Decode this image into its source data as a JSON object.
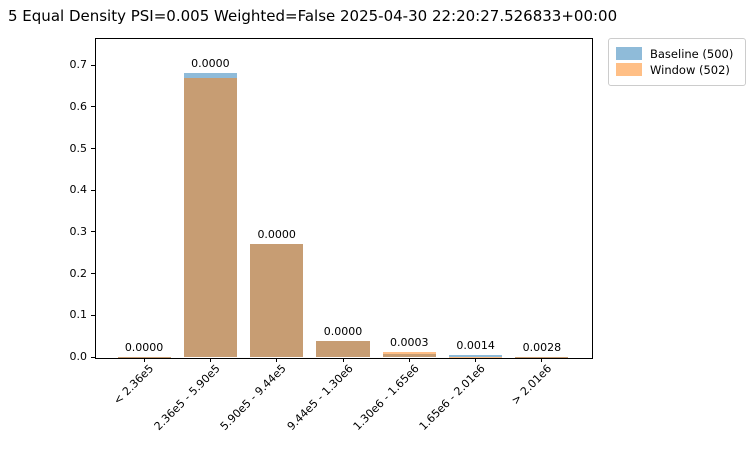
{
  "title": "5 Equal Density PSI=0.005 Weighted=False 2025-04-30 22:20:27.526833+00:00",
  "legend": {
    "entries": [
      {
        "label": "Baseline (500)",
        "color": "#1f77b4"
      },
      {
        "label": "Window (502)",
        "color": "#ff7f0e"
      }
    ],
    "alpha": 0.5,
    "position": "upper-right-outside"
  },
  "chart_data": {
    "type": "bar",
    "title": "5 Equal Density PSI=0.005 Weighted=False 2025-04-30 22:20:27.526833+00:00",
    "categories": [
      "< 2.36e5",
      "2.36e5 - 5.90e5",
      "5.90e5 - 9.44e5",
      "9.44e5 - 1.30e6",
      "1.30e6 - 1.65e6",
      "1.65e6 - 2.01e6",
      "> 2.01e6"
    ],
    "series": [
      {
        "name": "Baseline (500)",
        "color": "#1f77b4",
        "alpha": 0.5,
        "values": [
          0.0004,
          0.681,
          0.271,
          0.0385,
          0.008,
          0.0038,
          0.0008
        ]
      },
      {
        "name": "Window (502)",
        "color": "#ff7f0e",
        "alpha": 0.5,
        "values": [
          0.0002,
          0.67,
          0.271,
          0.0385,
          0.012,
          0.0008,
          0.0003
        ]
      }
    ],
    "bar_labels": [
      "0.0000",
      "0.0000",
      "0.0000",
      "0.0000",
      "0.0003",
      "0.0014",
      "0.0028"
    ],
    "xlabel": "",
    "ylabel": "",
    "ylim": [
      0.0,
      0.765
    ],
    "yticks": [
      0.0,
      0.1,
      0.2,
      0.3,
      0.4,
      0.5,
      0.6,
      0.7
    ],
    "ytick_labels": [
      "0.0",
      "0.1",
      "0.2",
      "0.3",
      "0.4",
      "0.5",
      "0.6",
      "0.7"
    ],
    "x_tick_rotation": 45,
    "grid": false,
    "bar_width_fraction": 0.8,
    "bars_overlap": true
  }
}
